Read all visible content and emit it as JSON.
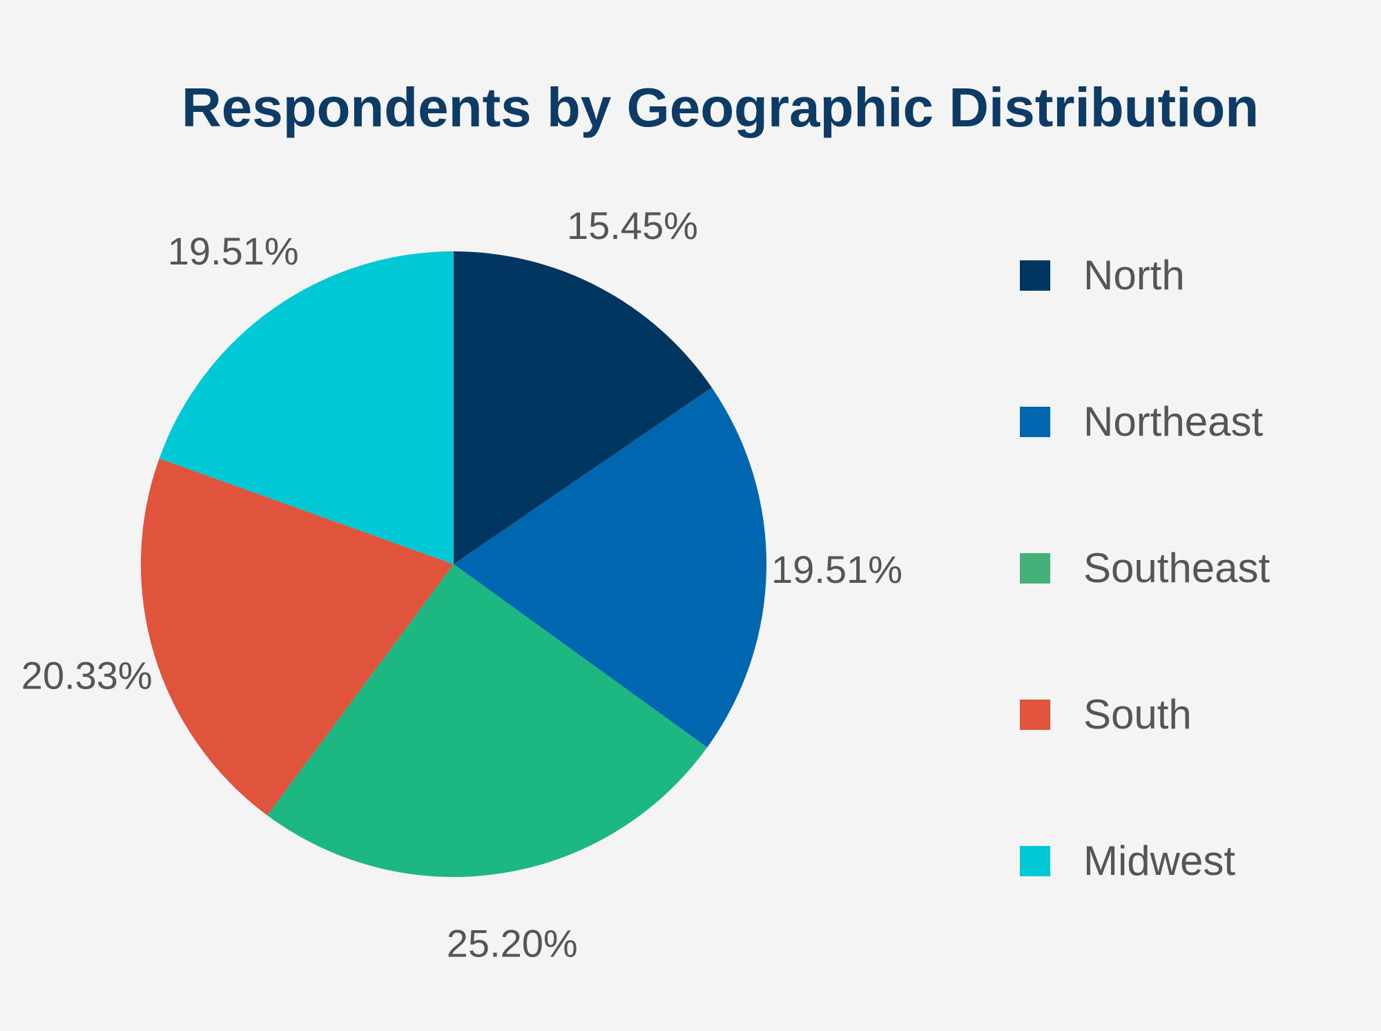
{
  "chart_data": {
    "type": "pie",
    "title": "Respondents by Geographic Distribution",
    "categories": [
      "North",
      "Northeast",
      "Southeast",
      "South",
      "Midwest"
    ],
    "values": [
      15.45,
      19.51,
      25.2,
      20.33,
      19.51
    ],
    "labels": [
      "15.45%",
      "19.51%",
      "25.20%",
      "20.33%",
      "19.51%"
    ],
    "colors": [
      "#003660",
      "#0066b0",
      "#1db782",
      "#e0533c",
      "#00c8d4"
    ],
    "legend_colors": [
      "#003660",
      "#0066b0",
      "#44b07a",
      "#e0533c",
      "#00c8d4"
    ],
    "legend_position": "right",
    "start_angle": "top",
    "direction": "clockwise"
  }
}
